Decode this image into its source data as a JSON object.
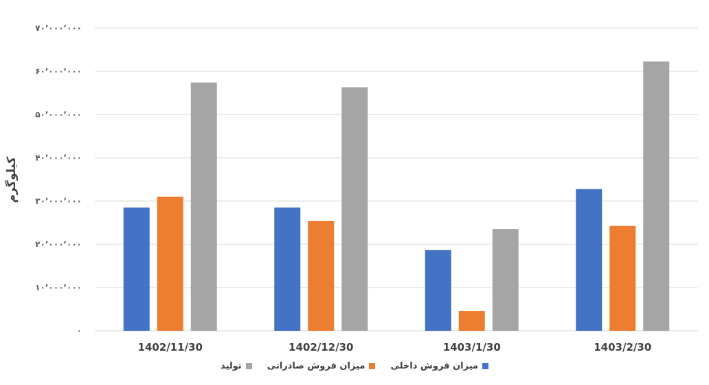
{
  "chart_data": {
    "type": "bar",
    "title": "",
    "ylabel": "کیلوگرم",
    "xlabel": "",
    "categories": [
      "1402/11/30",
      "1402/12/30",
      "1403/1/30",
      "1403/2/30"
    ],
    "series": [
      {
        "name": "میزان فروش داخلی",
        "color": "#4472C4",
        "values": [
          28500000,
          28500000,
          18700000,
          32800000
        ]
      },
      {
        "name": "میزان فروش صادراتی",
        "color": "#ED7D31",
        "values": [
          31000000,
          25400000,
          4600000,
          24300000
        ]
      },
      {
        "name": "تولید",
        "color": "#A5A5A5",
        "values": [
          57400000,
          56300000,
          23500000,
          62300000
        ]
      }
    ],
    "ylim": [
      0,
      70000000
    ],
    "yticks": [
      0,
      10000000,
      20000000,
      30000000,
      40000000,
      50000000,
      60000000,
      70000000
    ],
    "ytick_labels": [
      "۰",
      "۱۰٬۰۰۰٬۰۰۰",
      "۲۰٬۰۰۰٬۰۰۰",
      "۳۰٬۰۰۰٬۰۰۰",
      "۴۰٬۰۰۰٬۰۰۰",
      "۵۰٬۰۰۰٬۰۰۰",
      "۶۰٬۰۰۰٬۰۰۰",
      "۷۰٬۰۰۰٬۰۰۰"
    ],
    "grid": true,
    "legend_position": "bottom"
  }
}
